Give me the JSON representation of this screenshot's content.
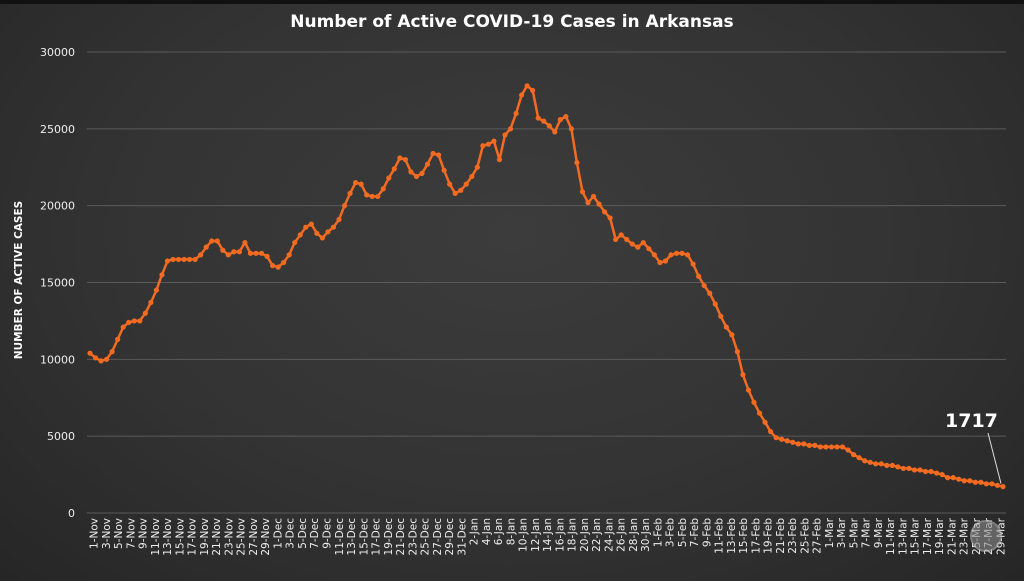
{
  "chart_data": {
    "type": "line",
    "title": "Number of Active COVID-19 Cases in Arkansas",
    "xlabel": "",
    "ylabel": "NUMBER OF ACTIVE CASES",
    "ylim": [
      0,
      30000
    ],
    "yticks": [
      0,
      5000,
      10000,
      15000,
      20000,
      25000,
      30000
    ],
    "grid": true,
    "legend": "none",
    "line_color": "#f26b21",
    "annotation": "1717",
    "x_labels": [
      "1-Nov",
      "3-Nov",
      "5-Nov",
      "7-Nov",
      "9-Nov",
      "11-Nov",
      "13-Nov",
      "15-Nov",
      "17-Nov",
      "19-Nov",
      "21-Nov",
      "23-Nov",
      "25-Nov",
      "27-Nov",
      "29-Nov",
      "1-Dec",
      "3-Dec",
      "5-Dec",
      "7-Dec",
      "9-Dec",
      "11-Dec",
      "13-Dec",
      "15-Dec",
      "17-Dec",
      "19-Dec",
      "21-Dec",
      "23-Dec",
      "25-Dec",
      "27-Dec",
      "29-Dec",
      "31-Dec",
      "2-Jan",
      "4-Jan",
      "6-Jan",
      "8-Jan",
      "10-Jan",
      "12-Jan",
      "14-Jan",
      "16-Jan",
      "18-Jan",
      "20-Jan",
      "22-Jan",
      "24-Jan",
      "26-Jan",
      "28-Jan",
      "30-Jan",
      "1-Feb",
      "3-Feb",
      "5-Feb",
      "7-Feb",
      "9-Feb",
      "11-Feb",
      "13-Feb",
      "15-Feb",
      "17-Feb",
      "19-Feb",
      "21-Feb",
      "23-Feb",
      "25-Feb",
      "27-Feb",
      "1-Mar",
      "3-Mar",
      "5-Mar",
      "7-Mar",
      "9-Mar",
      "11-Mar",
      "13-Mar",
      "15-Mar",
      "17-Mar",
      "19-Mar",
      "21-Mar",
      "23-Mar",
      "25-Mar",
      "27-Mar",
      "29-Mar"
    ],
    "values": [
      10400,
      10100,
      9900,
      10000,
      10500,
      11300,
      12100,
      12400,
      12500,
      12500,
      13000,
      13700,
      14500,
      15500,
      16400,
      16500,
      16500,
      16500,
      16500,
      16500,
      16800,
      17300,
      17700,
      17700,
      17100,
      16800,
      17000,
      17000,
      17600,
      16900,
      16900,
      16900,
      16700,
      16100,
      16000,
      16300,
      16800,
      17600,
      18100,
      18600,
      18800,
      18200,
      17900,
      18300,
      18600,
      19100,
      20000,
      20800,
      21500,
      21400,
      20700,
      20600,
      20600,
      21100,
      21800,
      22400,
      23100,
      23000,
      22200,
      21900,
      22100,
      22700,
      23400,
      23300,
      22300,
      21400,
      20800,
      21000,
      21400,
      21900,
      22500,
      23900,
      24000,
      24200,
      23000,
      24600,
      25000,
      26000,
      27200,
      27800,
      27500,
      25700,
      25500,
      25200,
      24800,
      25600,
      25800,
      25000,
      22800,
      20900,
      20200,
      20600,
      20100,
      19600,
      19200,
      17800,
      18100,
      17800,
      17500,
      17300,
      17600,
      17200,
      16800,
      16300,
      16400,
      16800,
      16900,
      16900,
      16800,
      16200,
      15400,
      14800,
      14300,
      13600,
      12800,
      12100,
      11600,
      10500,
      9000,
      8000,
      7200,
      6500,
      5900,
      5300,
      4900,
      4800,
      4700,
      4600,
      4500,
      4500,
      4400,
      4400,
      4300,
      4300,
      4300,
      4300,
      4300,
      4100,
      3800,
      3600,
      3400,
      3300,
      3200,
      3200,
      3100,
      3100,
      3000,
      2900,
      2900,
      2800,
      2800,
      2700,
      2700,
      2600,
      2500,
      2300,
      2300,
      2200,
      2100,
      2100,
      2000,
      2000,
      1900,
      1900,
      1800,
      1717
    ]
  }
}
